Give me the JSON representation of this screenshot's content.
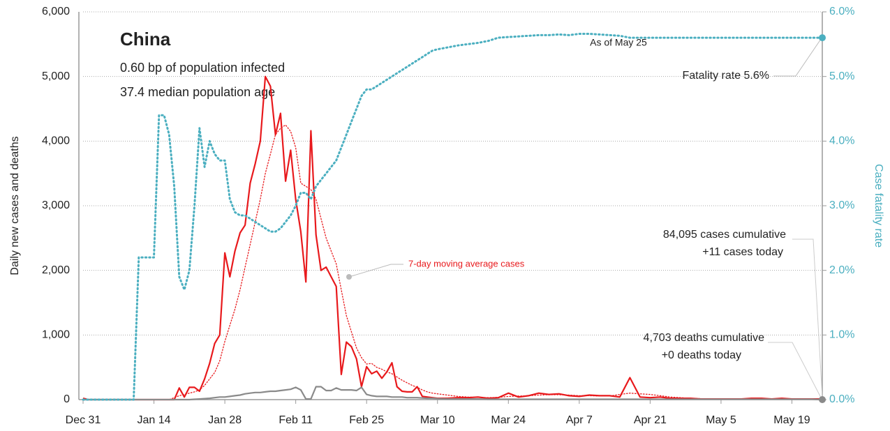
{
  "chart_data": {
    "type": "line",
    "annotations": {
      "heading": "China",
      "line1": "0.60 bp of population infected",
      "line2": "37.4 median population age",
      "as_of": "As of May 25",
      "fatality": "Fatality rate 5.6%",
      "moving_average": "7-day moving average cases",
      "cases_cumulative": "84,095 cases cumulative",
      "cases_today": "+11 cases today",
      "deaths_cumulative": "4,703 deaths cumulative",
      "deaths_today": "+0 deaths today"
    },
    "ylabel": "Daily new cases and deaths",
    "y2label": "Case fatality rate",
    "xlim": [
      0,
      146
    ],
    "xticks": [
      {
        "value": 0,
        "label": "Dec 31"
      },
      {
        "value": 14,
        "label": "Jan 14"
      },
      {
        "value": 28,
        "label": "Jan 28"
      },
      {
        "value": 42,
        "label": "Feb 11"
      },
      {
        "value": 56,
        "label": "Feb 25"
      },
      {
        "value": 70,
        "label": "Mar 10"
      },
      {
        "value": 84,
        "label": "Mar 24"
      },
      {
        "value": 98,
        "label": "Apr 7"
      },
      {
        "value": 112,
        "label": "Apr 21"
      },
      {
        "value": 126,
        "label": "May 5"
      },
      {
        "value": 140,
        "label": "May 19"
      }
    ],
    "ylim": [
      0,
      6000
    ],
    "yticks": [
      0,
      {
        "value": 1000,
        "label": "1,000"
      },
      {
        "value": 2000,
        "label": "2,000"
      },
      {
        "value": 3000,
        "label": "3,000"
      },
      {
        "value": 4000,
        "label": "4,000"
      },
      {
        "value": 5000,
        "label": "5,000"
      },
      {
        "value": 6000,
        "label": "6,000"
      }
    ],
    "y2lim": [
      0,
      6
    ],
    "y2ticks": [
      {
        "value": 0,
        "label": "0.0%"
      },
      {
        "value": 1,
        "label": "1.0%"
      },
      {
        "value": 2,
        "label": "2.0%"
      },
      {
        "value": 3,
        "label": "3.0%"
      },
      {
        "value": 4,
        "label": "4.0%"
      },
      {
        "value": 5,
        "label": "5.0%"
      },
      {
        "value": 6,
        "label": "6.0%"
      }
    ],
    "grid": true,
    "x": [
      0,
      1,
      2,
      3,
      4,
      5,
      6,
      7,
      8,
      9,
      10,
      11,
      12,
      13,
      14,
      15,
      16,
      17,
      18,
      19,
      20,
      21,
      22,
      23,
      24,
      25,
      26,
      27,
      28,
      29,
      30,
      31,
      32,
      33,
      34,
      35,
      36,
      37,
      38,
      39,
      40,
      41,
      42,
      43,
      44,
      45,
      46,
      47,
      48,
      49,
      50,
      51,
      52,
      53,
      54,
      55,
      56,
      57,
      58,
      59,
      60,
      61,
      62,
      63,
      64,
      65,
      66,
      67,
      68,
      69,
      70,
      72,
      74,
      76,
      78,
      80,
      82,
      84,
      86,
      88,
      90,
      92,
      94,
      96,
      98,
      100,
      102,
      104,
      106,
      108,
      110,
      112,
      114,
      116,
      118,
      120,
      122,
      124,
      126,
      128,
      130,
      132,
      134,
      136,
      138,
      140,
      142,
      144,
      146
    ],
    "series": [
      {
        "name": "cases",
        "color": "#e8191c",
        "style": "solid",
        "width": 2.2,
        "axis": "y",
        "values": [
          20,
          0,
          0,
          0,
          0,
          0,
          0,
          0,
          0,
          0,
          0,
          0,
          0,
          0,
          0,
          0,
          0,
          0,
          0,
          180,
          40,
          190,
          190,
          130,
          320,
          560,
          870,
          1000,
          2270,
          1900,
          2300,
          2580,
          2700,
          3350,
          3650,
          4000,
          5000,
          4850,
          4100,
          4430,
          3380,
          3860,
          3100,
          2600,
          1820,
          4160,
          2550,
          2000,
          2050,
          1900,
          1750,
          390,
          890,
          820,
          630,
          200,
          510,
          400,
          440,
          330,
          430,
          570,
          200,
          130,
          120,
          120,
          200,
          50,
          40,
          30,
          20,
          20,
          30,
          30,
          40,
          20,
          30,
          100,
          40,
          60,
          100,
          80,
          90,
          60,
          50,
          70,
          60,
          60,
          40,
          340,
          40,
          30,
          40,
          20,
          20,
          20,
          10,
          10,
          10,
          10,
          10,
          20,
          20,
          10,
          20,
          10,
          10,
          10,
          11
        ]
      },
      {
        "name": "7-day moving average",
        "color": "#e8191c",
        "style": "dotted",
        "width": 1.3,
        "axis": "y",
        "values": [
          3,
          0,
          0,
          0,
          0,
          0,
          0,
          0,
          0,
          0,
          0,
          0,
          0,
          0,
          0,
          0,
          0,
          0,
          30,
          60,
          80,
          100,
          120,
          150,
          220,
          320,
          420,
          600,
          900,
          1150,
          1400,
          1700,
          2050,
          2400,
          2750,
          3100,
          3500,
          3800,
          4100,
          4200,
          4250,
          4150,
          3900,
          3350,
          3300,
          3250,
          3100,
          2800,
          2500,
          2300,
          2100,
          1700,
          1300,
          1050,
          800,
          650,
          550,
          560,
          500,
          470,
          430,
          400,
          350,
          300,
          260,
          220,
          190,
          150,
          120,
          100,
          90,
          70,
          50,
          40,
          35,
          30,
          35,
          50,
          55,
          60,
          70,
          75,
          75,
          70,
          60,
          60,
          55,
          55,
          80,
          100,
          90,
          80,
          60,
          40,
          30,
          20,
          15,
          12,
          10,
          10,
          10,
          12,
          14,
          14,
          14,
          13,
          12,
          11,
          11
        ]
      },
      {
        "name": "deaths",
        "color": "#8a8a8a",
        "style": "solid",
        "width": 2.2,
        "axis": "y",
        "values": [
          0,
          0,
          0,
          0,
          0,
          0,
          0,
          0,
          0,
          0,
          0,
          0,
          0,
          0,
          0,
          0,
          0,
          0,
          0,
          0,
          0,
          0,
          5,
          10,
          15,
          20,
          30,
          40,
          40,
          50,
          60,
          70,
          90,
          100,
          110,
          110,
          120,
          130,
          130,
          140,
          150,
          160,
          190,
          150,
          10,
          10,
          200,
          200,
          140,
          140,
          180,
          150,
          150,
          150,
          140,
          190,
          80,
          60,
          50,
          50,
          50,
          40,
          40,
          40,
          30,
          30,
          30,
          25,
          20,
          20,
          15,
          10,
          10,
          10,
          10,
          5,
          5,
          5,
          5,
          5,
          5,
          5,
          5,
          5,
          5,
          5,
          5,
          5,
          5,
          5,
          5,
          5,
          5,
          5,
          5,
          5,
          5,
          5,
          5,
          5,
          5,
          5,
          5,
          5,
          5,
          5,
          5,
          5,
          0
        ]
      },
      {
        "name": "case fatality rate",
        "color": "#4bafc0",
        "style": "dotted",
        "width": 3,
        "axis": "y2",
        "values": [
          0,
          0,
          0,
          0,
          0,
          0,
          0,
          0,
          0,
          0,
          0,
          2.2,
          2.2,
          2.2,
          2.2,
          4.4,
          4.4,
          4.1,
          3.3,
          1.9,
          1.7,
          2.0,
          3.0,
          4.2,
          3.6,
          4.0,
          3.8,
          3.7,
          3.7,
          3.1,
          2.9,
          2.85,
          2.85,
          2.8,
          2.75,
          2.7,
          2.65,
          2.6,
          2.6,
          2.65,
          2.75,
          2.85,
          3.0,
          3.2,
          3.2,
          3.1,
          3.3,
          3.4,
          3.5,
          3.6,
          3.7,
          3.9,
          4.1,
          4.3,
          4.5,
          4.7,
          4.8,
          4.8,
          4.85,
          4.9,
          4.95,
          5.0,
          5.05,
          5.1,
          5.15,
          5.2,
          5.25,
          5.3,
          5.35,
          5.4,
          5.42,
          5.45,
          5.48,
          5.5,
          5.52,
          5.55,
          5.6,
          5.61,
          5.62,
          5.63,
          5.64,
          5.64,
          5.65,
          5.64,
          5.66,
          5.66,
          5.65,
          5.64,
          5.63,
          5.6,
          5.6,
          5.6,
          5.6,
          5.6,
          5.6,
          5.6,
          5.6,
          5.6,
          5.6,
          5.6,
          5.6,
          5.6,
          5.6,
          5.6,
          5.6,
          5.6,
          5.6,
          5.6,
          5.6
        ]
      }
    ]
  }
}
